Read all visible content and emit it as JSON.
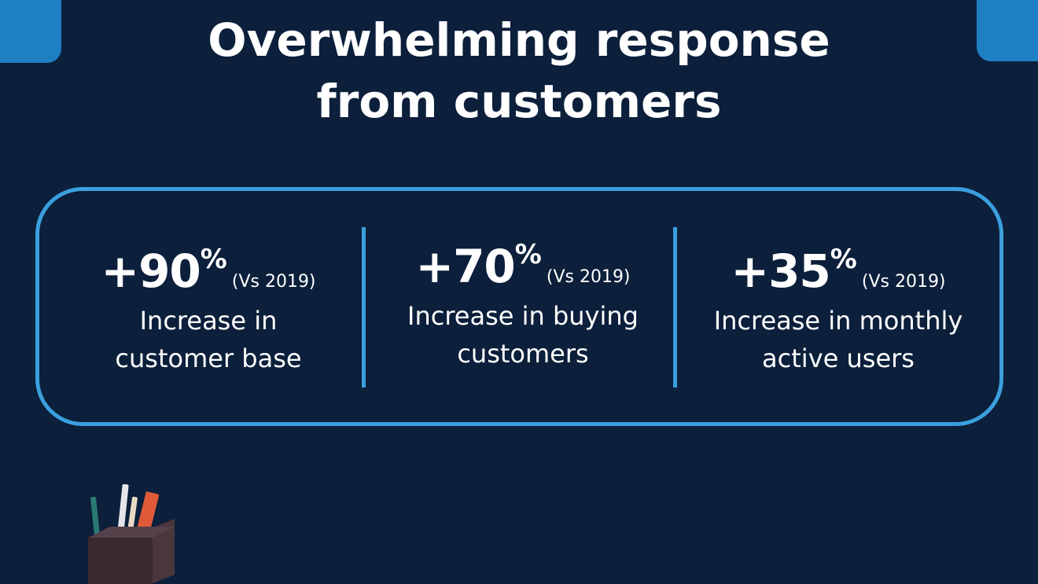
{
  "title": {
    "line1": "Overwhelming response",
    "line2": "from customers"
  },
  "stats": [
    {
      "value": "+90",
      "percent": "%",
      "comparison": "(Vs 2019)",
      "description": "Increase in\ncustomer base"
    },
    {
      "value": "+70",
      "percent": "%",
      "comparison": "(Vs 2019)",
      "description": "Increase in buying\ncustomers"
    },
    {
      "value": "+35",
      "percent": "%",
      "comparison": "(Vs 2019)",
      "description": "Increase in monthly\nactive users"
    }
  ],
  "colors": {
    "background": "#0c1f3b",
    "accent": "#3aa0dd",
    "corner": "#1f7fc3"
  },
  "icons": [
    "pencil-holder-icon"
  ]
}
